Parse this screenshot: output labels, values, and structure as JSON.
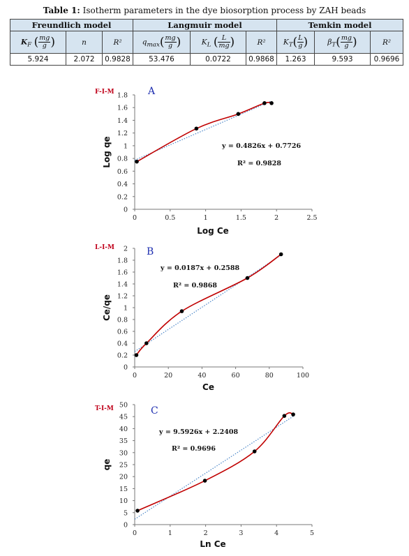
{
  "table": {
    "label": "Table 1:",
    "caption": "Isotherm parameters in the dye biosorption process by ZAH beads",
    "groups": {
      "freundlich": "Freundlich model",
      "langmuir": "Langmuir model",
      "temkin": "Temkin model"
    },
    "headers": {
      "kf": "K",
      "kf_sub": "F",
      "n": "n",
      "r2": "R²",
      "qmax": "q",
      "qmax_sub": "max",
      "kl": "K",
      "kl_sub": "L",
      "kt": "K",
      "kt_sub": "T",
      "bt": "β",
      "bt_sub": "T",
      "mg": "mg",
      "g": "g",
      "l": "L",
      "paren_open": "(",
      "paren_close": ")"
    },
    "values": {
      "kf": "5.924",
      "n": "2.072",
      "f_r2": "0.9828",
      "qmax": "53.476",
      "kl": "0.0722",
      "l_r2": "0.9868",
      "kt": "1.263",
      "bt": "9.593",
      "t_r2": "0.9696"
    }
  },
  "chart_data": [
    {
      "type": "scatter",
      "tag": "F-I-M",
      "letter": "A",
      "xlabel": "Log Ce",
      "ylabel": "Log qe",
      "xlim": [
        0,
        2.5
      ],
      "ylim": [
        0,
        1.8
      ],
      "xticks": [
        "0",
        "0.5",
        "1",
        "1.5",
        "2",
        "2.5"
      ],
      "xtick_values": [
        0,
        0.5,
        1,
        1.5,
        2,
        2.5
      ],
      "yticks": [
        "0",
        "0.2",
        "0.4",
        "0.6",
        "0.8",
        "1",
        "1.2",
        "1.4",
        "1.6",
        "1.8"
      ],
      "ytick_values": [
        0,
        0.2,
        0.4,
        0.6,
        0.8,
        1.0,
        1.2,
        1.4,
        1.6,
        1.8
      ],
      "points": [
        [
          0.03,
          0.75
        ],
        [
          0.87,
          1.27
        ],
        [
          1.46,
          1.5
        ],
        [
          1.83,
          1.67
        ],
        [
          1.93,
          1.67
        ]
      ],
      "trend": {
        "slope": 0.4826,
        "intercept": 0.7726
      },
      "equation": "y = 0.4826x + 0.7726",
      "r2": "R² = 0.9828",
      "colors": {
        "curve": "#c00000",
        "trend": "#4a86c8",
        "marker": "#000000"
      }
    },
    {
      "type": "scatter",
      "tag": "L-I-M",
      "letter": "B",
      "xlabel": "Ce",
      "ylabel": "Ce/qe",
      "xlim": [
        0,
        100
      ],
      "ylim": [
        0,
        2
      ],
      "xticks": [
        "0",
        "20",
        "40",
        "60",
        "80",
        "100"
      ],
      "xtick_values": [
        0,
        20,
        40,
        60,
        80,
        100
      ],
      "yticks": [
        "0",
        "0.2",
        "0.4",
        "0.6",
        "0.8",
        "1",
        "1.2",
        "1.4",
        "1.6",
        "1.8",
        "2"
      ],
      "ytick_values": [
        0,
        0.2,
        0.4,
        0.6,
        0.8,
        1.0,
        1.2,
        1.4,
        1.6,
        1.8,
        2.0
      ],
      "points": [
        [
          1,
          0.2
        ],
        [
          7,
          0.4
        ],
        [
          28,
          0.94
        ],
        [
          67,
          1.5
        ],
        [
          87,
          1.9
        ]
      ],
      "trend": {
        "slope": 0.0187,
        "intercept": 0.2588
      },
      "equation": "y = 0.0187x + 0.2588",
      "r2": "R² = 0.9868",
      "colors": {
        "curve": "#c00000",
        "trend": "#4a86c8",
        "marker": "#000000"
      }
    },
    {
      "type": "scatter",
      "tag": "T-I-M",
      "letter": "C",
      "xlabel": "Ln Ce",
      "ylabel": "qe",
      "xlim": [
        0,
        5
      ],
      "ylim": [
        0,
        50
      ],
      "xticks": [
        "0",
        "1",
        "2",
        "3",
        "4",
        "5"
      ],
      "xtick_values": [
        0,
        1,
        2,
        3,
        4,
        5
      ],
      "yticks": [
        "0",
        "5",
        "10",
        "15",
        "20",
        "25",
        "30",
        "35",
        "40",
        "45",
        "50"
      ],
      "ytick_values": [
        0,
        5,
        10,
        15,
        20,
        25,
        30,
        35,
        40,
        45,
        50
      ],
      "points": [
        [
          0.08,
          5.8
        ],
        [
          1.98,
          18.3
        ],
        [
          3.38,
          30.5
        ],
        [
          4.22,
          45.3
        ],
        [
          4.47,
          45.9
        ]
      ],
      "trend": {
        "slope": 9.5926,
        "intercept": 2.2408
      },
      "equation": "y = 9.5926x + 2.2408",
      "r2": "R² = 0.9696",
      "colors": {
        "curve": "#c00000",
        "trend": "#4a86c8",
        "marker": "#000000"
      }
    }
  ]
}
